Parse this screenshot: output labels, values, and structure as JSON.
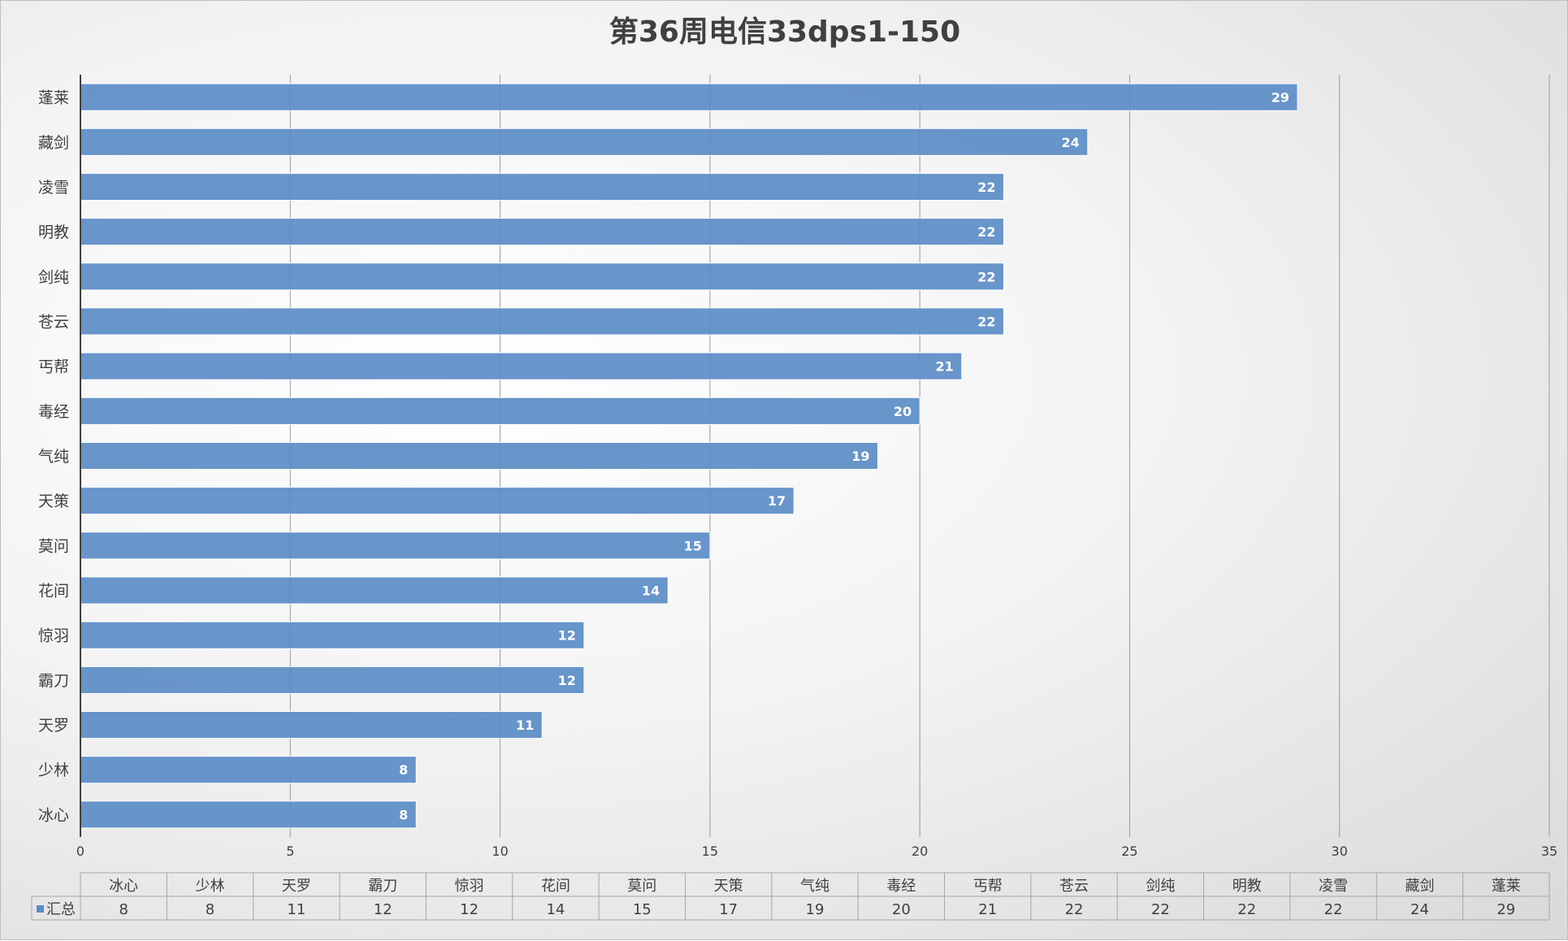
{
  "chart_data": {
    "type": "bar",
    "orientation": "horizontal",
    "title": "第36周电信33dps1-150",
    "categories": [
      "冰心",
      "少林",
      "天罗",
      "霸刀",
      "惊羽",
      "花间",
      "莫问",
      "天策",
      "气纯",
      "毒经",
      "丐帮",
      "苍云",
      "剑纯",
      "明教",
      "凌雪",
      "藏剑",
      "蓬莱"
    ],
    "series": [
      {
        "name": "汇总",
        "color": "#5b8cc6",
        "values": [
          8,
          8,
          11,
          12,
          12,
          14,
          15,
          17,
          19,
          20,
          21,
          22,
          22,
          22,
          22,
          24,
          29
        ]
      }
    ],
    "xlim": [
      0,
      35
    ],
    "xticks": [
      0,
      5,
      10,
      15,
      20,
      25,
      30,
      35
    ],
    "grid": "vertical",
    "data_labels": true,
    "data_table": true,
    "legend": "data-table"
  }
}
